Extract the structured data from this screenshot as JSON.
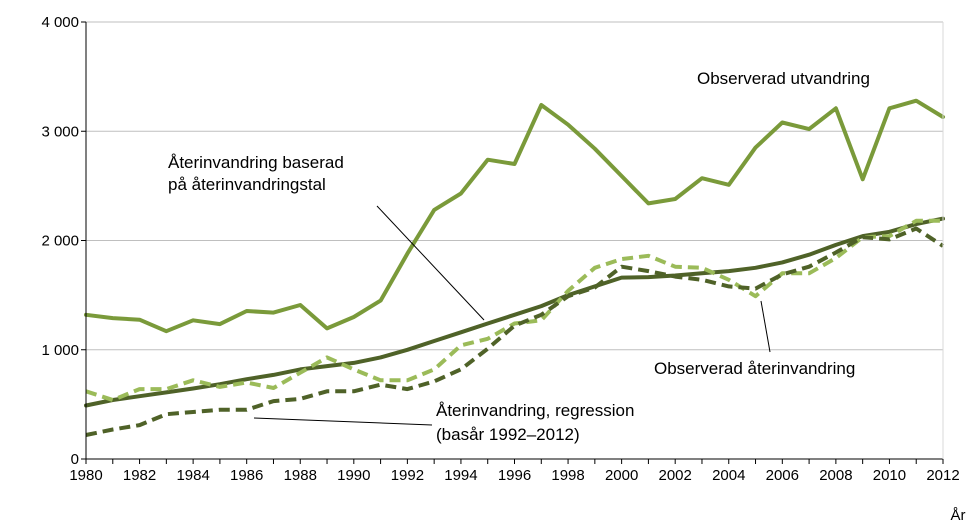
{
  "chart_data": {
    "type": "line",
    "xlabel": "År",
    "ylim": [
      0,
      4000
    ],
    "y_ticks": [
      0,
      1000,
      2000,
      3000,
      4000
    ],
    "y_tick_labels": [
      "0",
      "1 000",
      "2 000",
      "3 000",
      "4 000"
    ],
    "x_ticks": [
      1980,
      1982,
      1984,
      1986,
      1988,
      1990,
      1992,
      1994,
      1996,
      1998,
      2000,
      2002,
      2004,
      2006,
      2008,
      2010,
      2012
    ],
    "x": [
      1980,
      1981,
      1982,
      1983,
      1984,
      1985,
      1986,
      1987,
      1988,
      1989,
      1990,
      1991,
      1992,
      1993,
      1994,
      1995,
      1996,
      1997,
      1998,
      1999,
      2000,
      2001,
      2002,
      2003,
      2004,
      2005,
      2006,
      2007,
      2008,
      2009,
      2010,
      2011,
      2012
    ],
    "grid": "horizontal",
    "series": [
      {
        "name": "Observerad utvandring",
        "color": "#7a9a3a",
        "style": "solid",
        "values": [
          1320,
          1290,
          1275,
          1170,
          1270,
          1235,
          1355,
          1340,
          1410,
          1195,
          1300,
          1450,
          1880,
          2280,
          2430,
          2740,
          2700,
          3240,
          3060,
          2840,
          2590,
          2340,
          2380,
          2570,
          2510,
          2850,
          3080,
          3020,
          3210,
          2560,
          3210,
          3280,
          3130
        ]
      },
      {
        "name": "Återinvandring baserad på återinvandringstal",
        "color": "#4f6228",
        "style": "solid",
        "values": [
          490,
          540,
          575,
          610,
          645,
          685,
          730,
          770,
          820,
          850,
          880,
          930,
          1000,
          1080,
          1160,
          1240,
          1320,
          1400,
          1500,
          1580,
          1660,
          1665,
          1680,
          1700,
          1720,
          1750,
          1800,
          1870,
          1960,
          2040,
          2080,
          2150,
          2200
        ]
      },
      {
        "name": "Observerad återinvandring",
        "color": "#9bbb59",
        "style": "dashed",
        "values": [
          620,
          540,
          640,
          640,
          720,
          660,
          700,
          650,
          790,
          930,
          820,
          720,
          720,
          820,
          1040,
          1100,
          1240,
          1270,
          1540,
          1750,
          1830,
          1860,
          1760,
          1750,
          1640,
          1490,
          1700,
          1700,
          1840,
          2030,
          2040,
          2180,
          2180
        ]
      },
      {
        "name": "Återinvandring, regression (basår 1992–2012)",
        "color": "#4f6228",
        "style": "dashed",
        "values": [
          220,
          270,
          310,
          410,
          430,
          450,
          450,
          530,
          550,
          620,
          620,
          680,
          640,
          710,
          820,
          1010,
          1220,
          1320,
          1490,
          1570,
          1760,
          1720,
          1670,
          1640,
          1580,
          1560,
          1690,
          1760,
          1890,
          2030,
          2010,
          2110,
          1950
        ]
      }
    ],
    "annotations": [
      {
        "lines": [
          "Observerad utvandring"
        ]
      },
      {
        "lines": [
          "Återinvandring baserad",
          "på återinvandringstal"
        ]
      },
      {
        "lines": [
          "Observerad återinvandring"
        ]
      },
      {
        "lines": [
          "Återinvandring, regression",
          "(basår 1992–2012)"
        ]
      }
    ]
  }
}
